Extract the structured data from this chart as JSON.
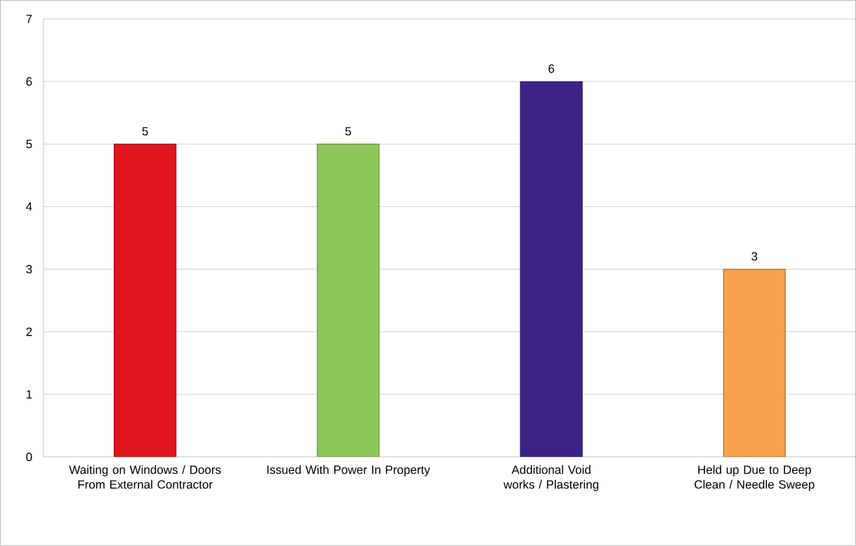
{
  "chart_data": {
    "type": "bar",
    "categories": [
      "Waiting on Windows / Doors From External Contractor",
      "Issued With Power In Property",
      "Additional Void works / Plastering",
      "Held up Due to Deep Clean / Needle Sweep"
    ],
    "values": [
      5,
      5,
      6,
      3
    ],
    "colors": [
      "#e0151e",
      "#8cc75a",
      "#3b2387",
      "#f5a04a"
    ],
    "ylim": [
      0,
      7
    ],
    "yticks": [
      0,
      1,
      2,
      3,
      4,
      5,
      6,
      7
    ],
    "grid": "y",
    "data_labels": true
  }
}
